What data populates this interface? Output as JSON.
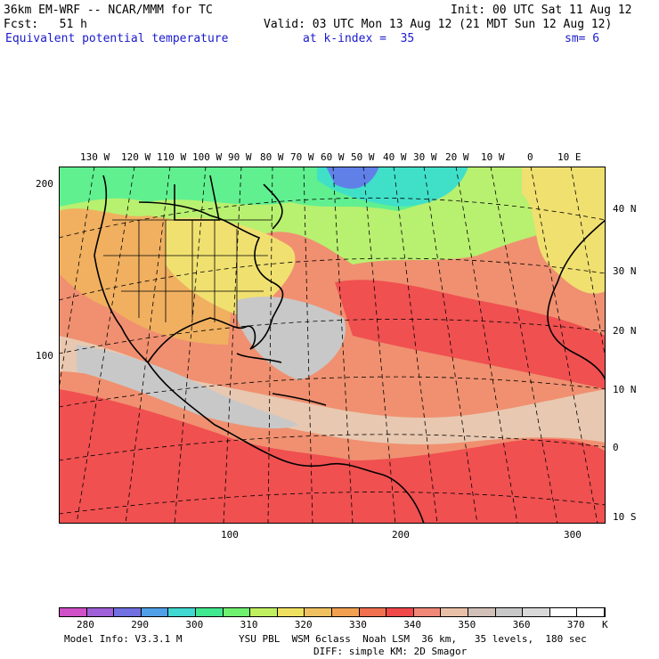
{
  "header": {
    "model": "36km EM-WRF -- NCAR/MMM for TC",
    "init": "Init: 00 UTC Sat 11 Aug 12",
    "fcst": "Fcst:   51 h",
    "valid": "Valid: 03 UTC Mon 13 Aug 12 (21 MDT Sun 12 Aug 12)",
    "field": "Equivalent potential temperature",
    "level": "at k-index =  35",
    "smooth": "sm= 6"
  },
  "map": {
    "lon_labels": [
      "130 W",
      "120 W",
      "110 W",
      "100 W",
      "90 W",
      "80 W",
      "70 W",
      "60 W",
      "50 W",
      "40 W",
      "30 W",
      "20 W",
      "10 W",
      "0",
      "10 E"
    ],
    "lat_labels": [
      "40 N",
      "30 N",
      "20 N",
      "10 N",
      "0",
      "10 S"
    ],
    "y_grid_labels": [
      "200",
      "100"
    ],
    "x_grid_labels": [
      "100",
      "200",
      "300"
    ],
    "colors": {
      "gray": "#c8c8c8",
      "tan": "#e8c8b0",
      "salmon": "#f09070",
      "red": "#f05050",
      "orange": "#f0b060",
      "yellow": "#f0e070",
      "lightgreen": "#b8f070",
      "green": "#60f090",
      "teal": "#40e0c8",
      "blue": "#6080e8",
      "land_outline": "#000000"
    }
  },
  "colorbar": {
    "ticks": [
      "280",
      "290",
      "300",
      "310",
      "320",
      "330",
      "340",
      "350",
      "360",
      "370",
      "K"
    ],
    "colors": [
      "#d050c8",
      "#a060d8",
      "#7070e0",
      "#50a0e8",
      "#40d8d0",
      "#40e890",
      "#70f070",
      "#c0f060",
      "#f0e060",
      "#f0c060",
      "#f0a050",
      "#f07050",
      "#f04848",
      "#f08878",
      "#e8c0a8",
      "#d0c0b8",
      "#c8c8c8",
      "#d8d8d8",
      "#ffffff",
      "#ffffff"
    ]
  },
  "footer": {
    "info": "Model Info: V3.3.1 M",
    "physics": "YSU PBL  WSM 6class  Noah LSM  36 km,   35 levels,  180 sec",
    "physics2": "DIFF: simple KM: 2D Smagor"
  }
}
